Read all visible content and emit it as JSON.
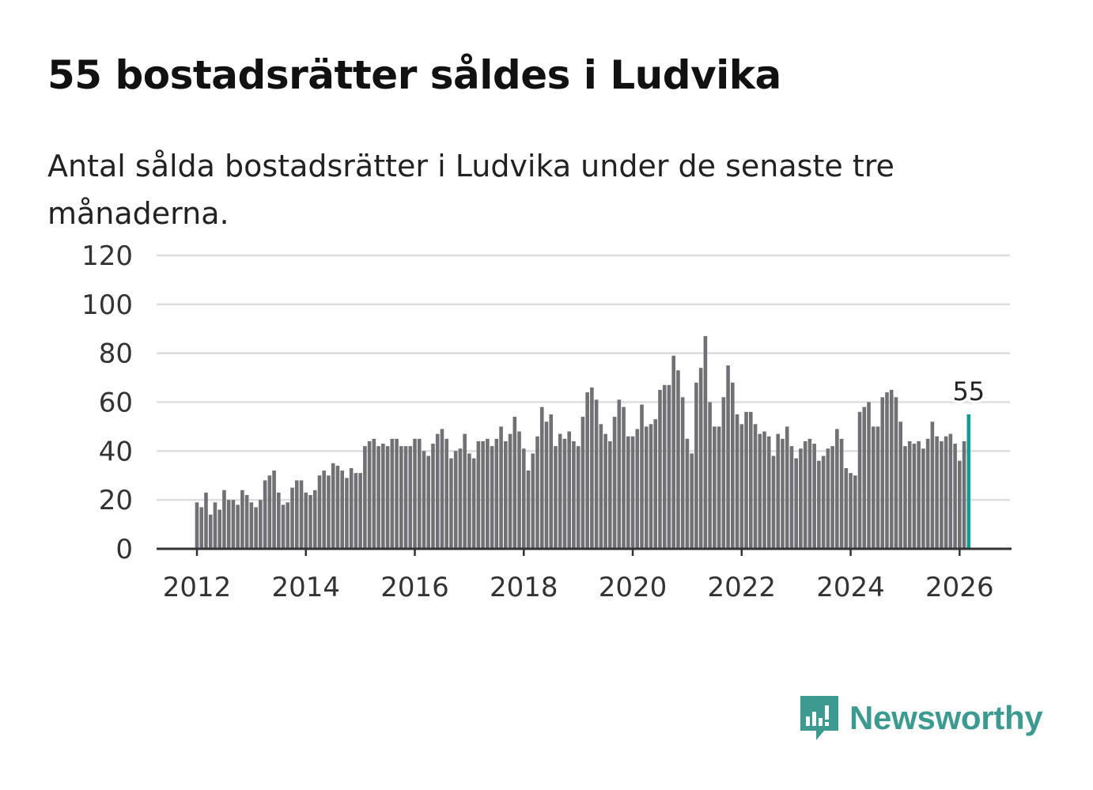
{
  "title": "55 bostadsrätter såldes i Ludvika",
  "subtitle": "Antal sålda bostadsrätter i Ludvika under de senaste tre månaderna.",
  "logo": {
    "text": "Newsworthy",
    "icon": "newsworthy-chart-bubble-icon"
  },
  "colors": {
    "bar": "#717075",
    "highlight": "#139c92",
    "grid": "#dddddd",
    "axis": "#333333",
    "brand": "#3d9a90"
  },
  "chart_data": {
    "type": "bar",
    "title": "55 bostadsrätter såldes i Ludvika",
    "xlabel": "",
    "ylabel": "",
    "ylim": [
      0,
      120
    ],
    "yticks": [
      "0",
      "20",
      "40",
      "60",
      "80",
      "100",
      "120"
    ],
    "xticks": [
      "2012",
      "2014",
      "2016",
      "2018",
      "2020",
      "2022",
      "2024",
      "2026"
    ],
    "start": "2012-01",
    "frequency": "monthly",
    "grid": true,
    "highlight_label": "55",
    "values": [
      19,
      17,
      23,
      14,
      19,
      16,
      24,
      20,
      20,
      18,
      24,
      22,
      19,
      17,
      20,
      28,
      30,
      32,
      23,
      18,
      19,
      25,
      28,
      28,
      23,
      22,
      24,
      30,
      32,
      30,
      35,
      34,
      32,
      29,
      33,
      31,
      31,
      42,
      44,
      45,
      42,
      43,
      42,
      45,
      45,
      42,
      42,
      42,
      45,
      45,
      40,
      38,
      43,
      47,
      49,
      45,
      37,
      40,
      41,
      47,
      39,
      37,
      44,
      44,
      45,
      42,
      45,
      50,
      44,
      47,
      54,
      48,
      41,
      32,
      39,
      46,
      58,
      52,
      55,
      42,
      47,
      45,
      48,
      44,
      42,
      54,
      64,
      66,
      61,
      51,
      47,
      44,
      54,
      61,
      58,
      46,
      46,
      49,
      59,
      50,
      51,
      53,
      65,
      67,
      67,
      79,
      73,
      62,
      45,
      39,
      68,
      74,
      87,
      60,
      50,
      50,
      62,
      75,
      68,
      55,
      51,
      56,
      56,
      51,
      47,
      48,
      46,
      38,
      47,
      45,
      50,
      42,
      37,
      41,
      44,
      45,
      43,
      36,
      38,
      41,
      42,
      49,
      45,
      33,
      31,
      30,
      56,
      58,
      60,
      50,
      50,
      62,
      64,
      65,
      62,
      52,
      42,
      44,
      43,
      44,
      41,
      45,
      52,
      46,
      44,
      46,
      47,
      43,
      36,
      44,
      55
    ]
  }
}
